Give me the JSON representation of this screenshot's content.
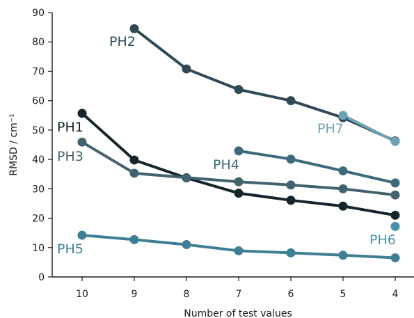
{
  "chart_data": {
    "type": "line",
    "title": "",
    "xlabel": "Number of test values",
    "ylabel": "RMSD / cm⁻¹",
    "x": [
      10,
      9,
      8,
      7,
      6,
      5,
      4
    ],
    "x_tick_labels": [
      "10",
      "9",
      "8",
      "7",
      "6",
      "5",
      "4"
    ],
    "ylim": [
      0,
      90
    ],
    "y_ticks": [
      0,
      10,
      20,
      30,
      40,
      50,
      60,
      70,
      80,
      90
    ],
    "grid": false,
    "legend": "none (inline series labels)",
    "series": [
      {
        "name": "PH2",
        "color": "#2f4a55",
        "x": [
          9,
          8,
          7,
          6,
          5,
          4
        ],
        "values": [
          84.5,
          70.8,
          63.8,
          60.0,
          54.2,
          46.3
        ]
      },
      {
        "name": "PH7",
        "color": "#6ea3b5",
        "x": [
          5,
          4
        ],
        "values": [
          55.0,
          46.1
        ]
      },
      {
        "name": "PH1",
        "color": "#15252b",
        "x": [
          10,
          9,
          8,
          7,
          6,
          5,
          4
        ],
        "values": [
          55.7,
          39.8,
          33.7,
          28.5,
          26.1,
          24.1,
          21.0
        ]
      },
      {
        "name": "PH3",
        "color": "#42626e",
        "x": [
          10,
          9,
          8,
          7,
          6,
          5,
          4
        ],
        "values": [
          45.9,
          35.3,
          33.8,
          32.4,
          31.3,
          30.0,
          27.9
        ]
      },
      {
        "name": "PH4",
        "color": "#3d6a7a",
        "x": [
          7,
          6,
          5,
          4
        ],
        "values": [
          42.9,
          40.1,
          36.1,
          32.0
        ]
      },
      {
        "name": "PH5",
        "color": "#3f7f95",
        "x": [
          10,
          9,
          8,
          7,
          6,
          5,
          4
        ],
        "values": [
          14.2,
          12.7,
          11.0,
          8.9,
          8.2,
          7.4,
          6.5
        ]
      },
      {
        "name": "PH6",
        "color": "#4a91a8",
        "x": [
          4
        ],
        "values": [
          17.2
        ]
      }
    ]
  }
}
